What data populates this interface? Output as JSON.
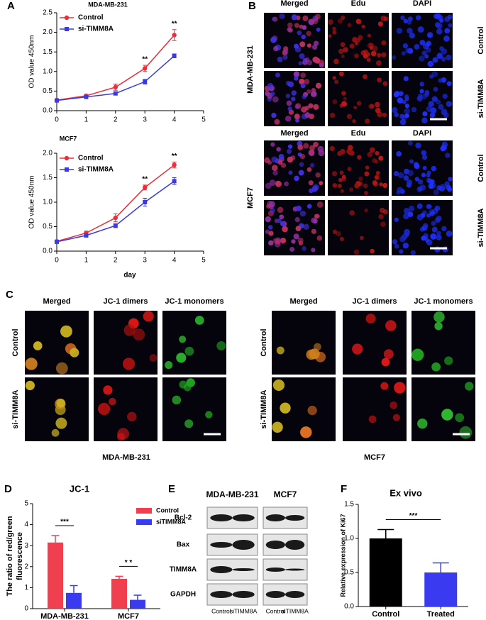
{
  "panel_labels": [
    "A",
    "B",
    "C",
    "D",
    "E",
    "F"
  ],
  "chart_data": [
    {
      "type": "line",
      "title": "MDA-MB-231",
      "ylabel": "OD value  450nm",
      "x": [
        0,
        1,
        2,
        3,
        4
      ],
      "series": [
        {
          "name": "Control",
          "color": "#e8303a",
          "marker": "circle",
          "values": [
            0.27,
            0.38,
            0.6,
            1.08,
            1.93
          ],
          "errors": [
            0.02,
            0.03,
            0.08,
            0.08,
            0.14
          ]
        },
        {
          "name": "si-TIMM8A",
          "color": "#3a3adf",
          "marker": "square",
          "values": [
            0.26,
            0.35,
            0.44,
            0.74,
            1.4
          ],
          "errors": [
            0.02,
            0.02,
            0.04,
            0.06,
            0.05
          ]
        }
      ],
      "annotations": [
        {
          "x": 3,
          "label": "**"
        },
        {
          "x": 4,
          "label": "**"
        }
      ],
      "xlim": [
        0,
        5
      ],
      "xticks": [
        0,
        1,
        2,
        3,
        4,
        5
      ],
      "ylim": [
        0,
        2.5
      ],
      "yticks": [
        {
          "value": 0,
          "label": "0.0"
        },
        0.5,
        {
          "value": 1,
          "label": "1.0"
        },
        1.5,
        {
          "value": 2,
          "label": "2.0"
        },
        2.5
      ],
      "legend": "upper left"
    },
    {
      "type": "line",
      "title": "MCF7",
      "ylabel": "OD value  450nm",
      "xlabel": "day",
      "x": [
        0,
        1,
        2,
        3,
        4
      ],
      "series": [
        {
          "name": "Control",
          "color": "#e8303a",
          "marker": "circle",
          "values": [
            0.2,
            0.37,
            0.68,
            1.3,
            1.76
          ],
          "errors": [
            0.02,
            0.04,
            0.08,
            0.05,
            0.06
          ]
        },
        {
          "name": "si-TIMM8A",
          "color": "#3a3adf",
          "marker": "square",
          "values": [
            0.19,
            0.32,
            0.52,
            1.0,
            1.43
          ],
          "errors": [
            0.02,
            0.03,
            0.04,
            0.08,
            0.07
          ]
        }
      ],
      "annotations": [
        {
          "x": 3,
          "label": "**"
        },
        {
          "x": 4,
          "label": "**"
        }
      ],
      "xlim": [
        0,
        5
      ],
      "xticks": [
        0,
        1,
        2,
        3,
        4,
        5
      ],
      "ylim": [
        0,
        2
      ],
      "yticks": [
        {
          "value": 0,
          "label": "0.0"
        },
        0.5,
        {
          "value": 1,
          "label": "1.0"
        },
        1.5,
        {
          "value": 2,
          "label": "2.0"
        }
      ],
      "legend": "upper left"
    },
    {
      "type": "bar",
      "title": "JC-1",
      "ylabel": [
        "The ratio of red/green",
        "fluorescence"
      ],
      "categories": [
        "MDA-MB-231",
        "MCF7"
      ],
      "series": [
        {
          "name": "Control",
          "color": "#f04050",
          "values": [
            3.15,
            1.42
          ],
          "errors": [
            0.33,
            0.12
          ]
        },
        {
          "name": "siTIMM8A",
          "color": "#3a3af0",
          "values": [
            0.75,
            0.42
          ],
          "errors": [
            0.35,
            0.22
          ]
        }
      ],
      "annotations": [
        {
          "category": 0,
          "label": "***"
        },
        {
          "category": 1,
          "label": "* *"
        }
      ],
      "ylim": [
        0,
        5
      ],
      "yticks": [
        0,
        1,
        2,
        3,
        4,
        5
      ],
      "legend": "upper right"
    },
    {
      "type": "bar",
      "title": "Ex vivo",
      "ylabel": "Relative expression of Ki67",
      "categories": [
        "Control",
        "Treated"
      ],
      "values": [
        1.0,
        0.5
      ],
      "errors": [
        0.13,
        0.14
      ],
      "colors": [
        "#000000",
        "#3a3af0"
      ],
      "annotations": [
        {
          "label": "***"
        }
      ],
      "ylim": [
        0,
        1.5
      ],
      "yticks": [
        {
          "value": 0,
          "label": "0.0"
        },
        0.5,
        {
          "value": 1,
          "label": "1.0"
        },
        1.5
      ]
    }
  ],
  "panel_b": {
    "blocks": [
      {
        "cell_line": "MDA-MB-231",
        "columns": [
          "Merged",
          "Edu",
          "DAPI"
        ],
        "rows": [
          "Control",
          "si-TIMM8A"
        ]
      },
      {
        "cell_line": "MCF7",
        "columns": [
          "Merged",
          "Edu",
          "DAPI"
        ],
        "rows": [
          "Control",
          "si-TIMM8A"
        ]
      }
    ]
  },
  "panel_c": {
    "blocks": [
      {
        "caption": "MDA-MB-231",
        "columns": [
          "Merged",
          "JC-1 dimers",
          "JC-1 monomers"
        ],
        "rows": [
          "Control",
          "si-TIMM8A"
        ]
      },
      {
        "caption": "MCF7",
        "columns": [
          "Merged",
          "JC-1 dimers",
          "JC-1 monomers"
        ],
        "rows": [
          "Control",
          "si-TIMM8A"
        ]
      }
    ]
  },
  "panel_e": {
    "proteins": [
      "Bcl-2",
      "Bax",
      "TIMM8A",
      "GAPDH"
    ],
    "blocks": [
      {
        "cell_line": "MDA-MB-231",
        "lanes": [
          "Control",
          "siTIMM8A"
        ]
      },
      {
        "cell_line": "MCF7",
        "lanes": [
          "Control",
          "siTIMM8A"
        ]
      }
    ]
  }
}
